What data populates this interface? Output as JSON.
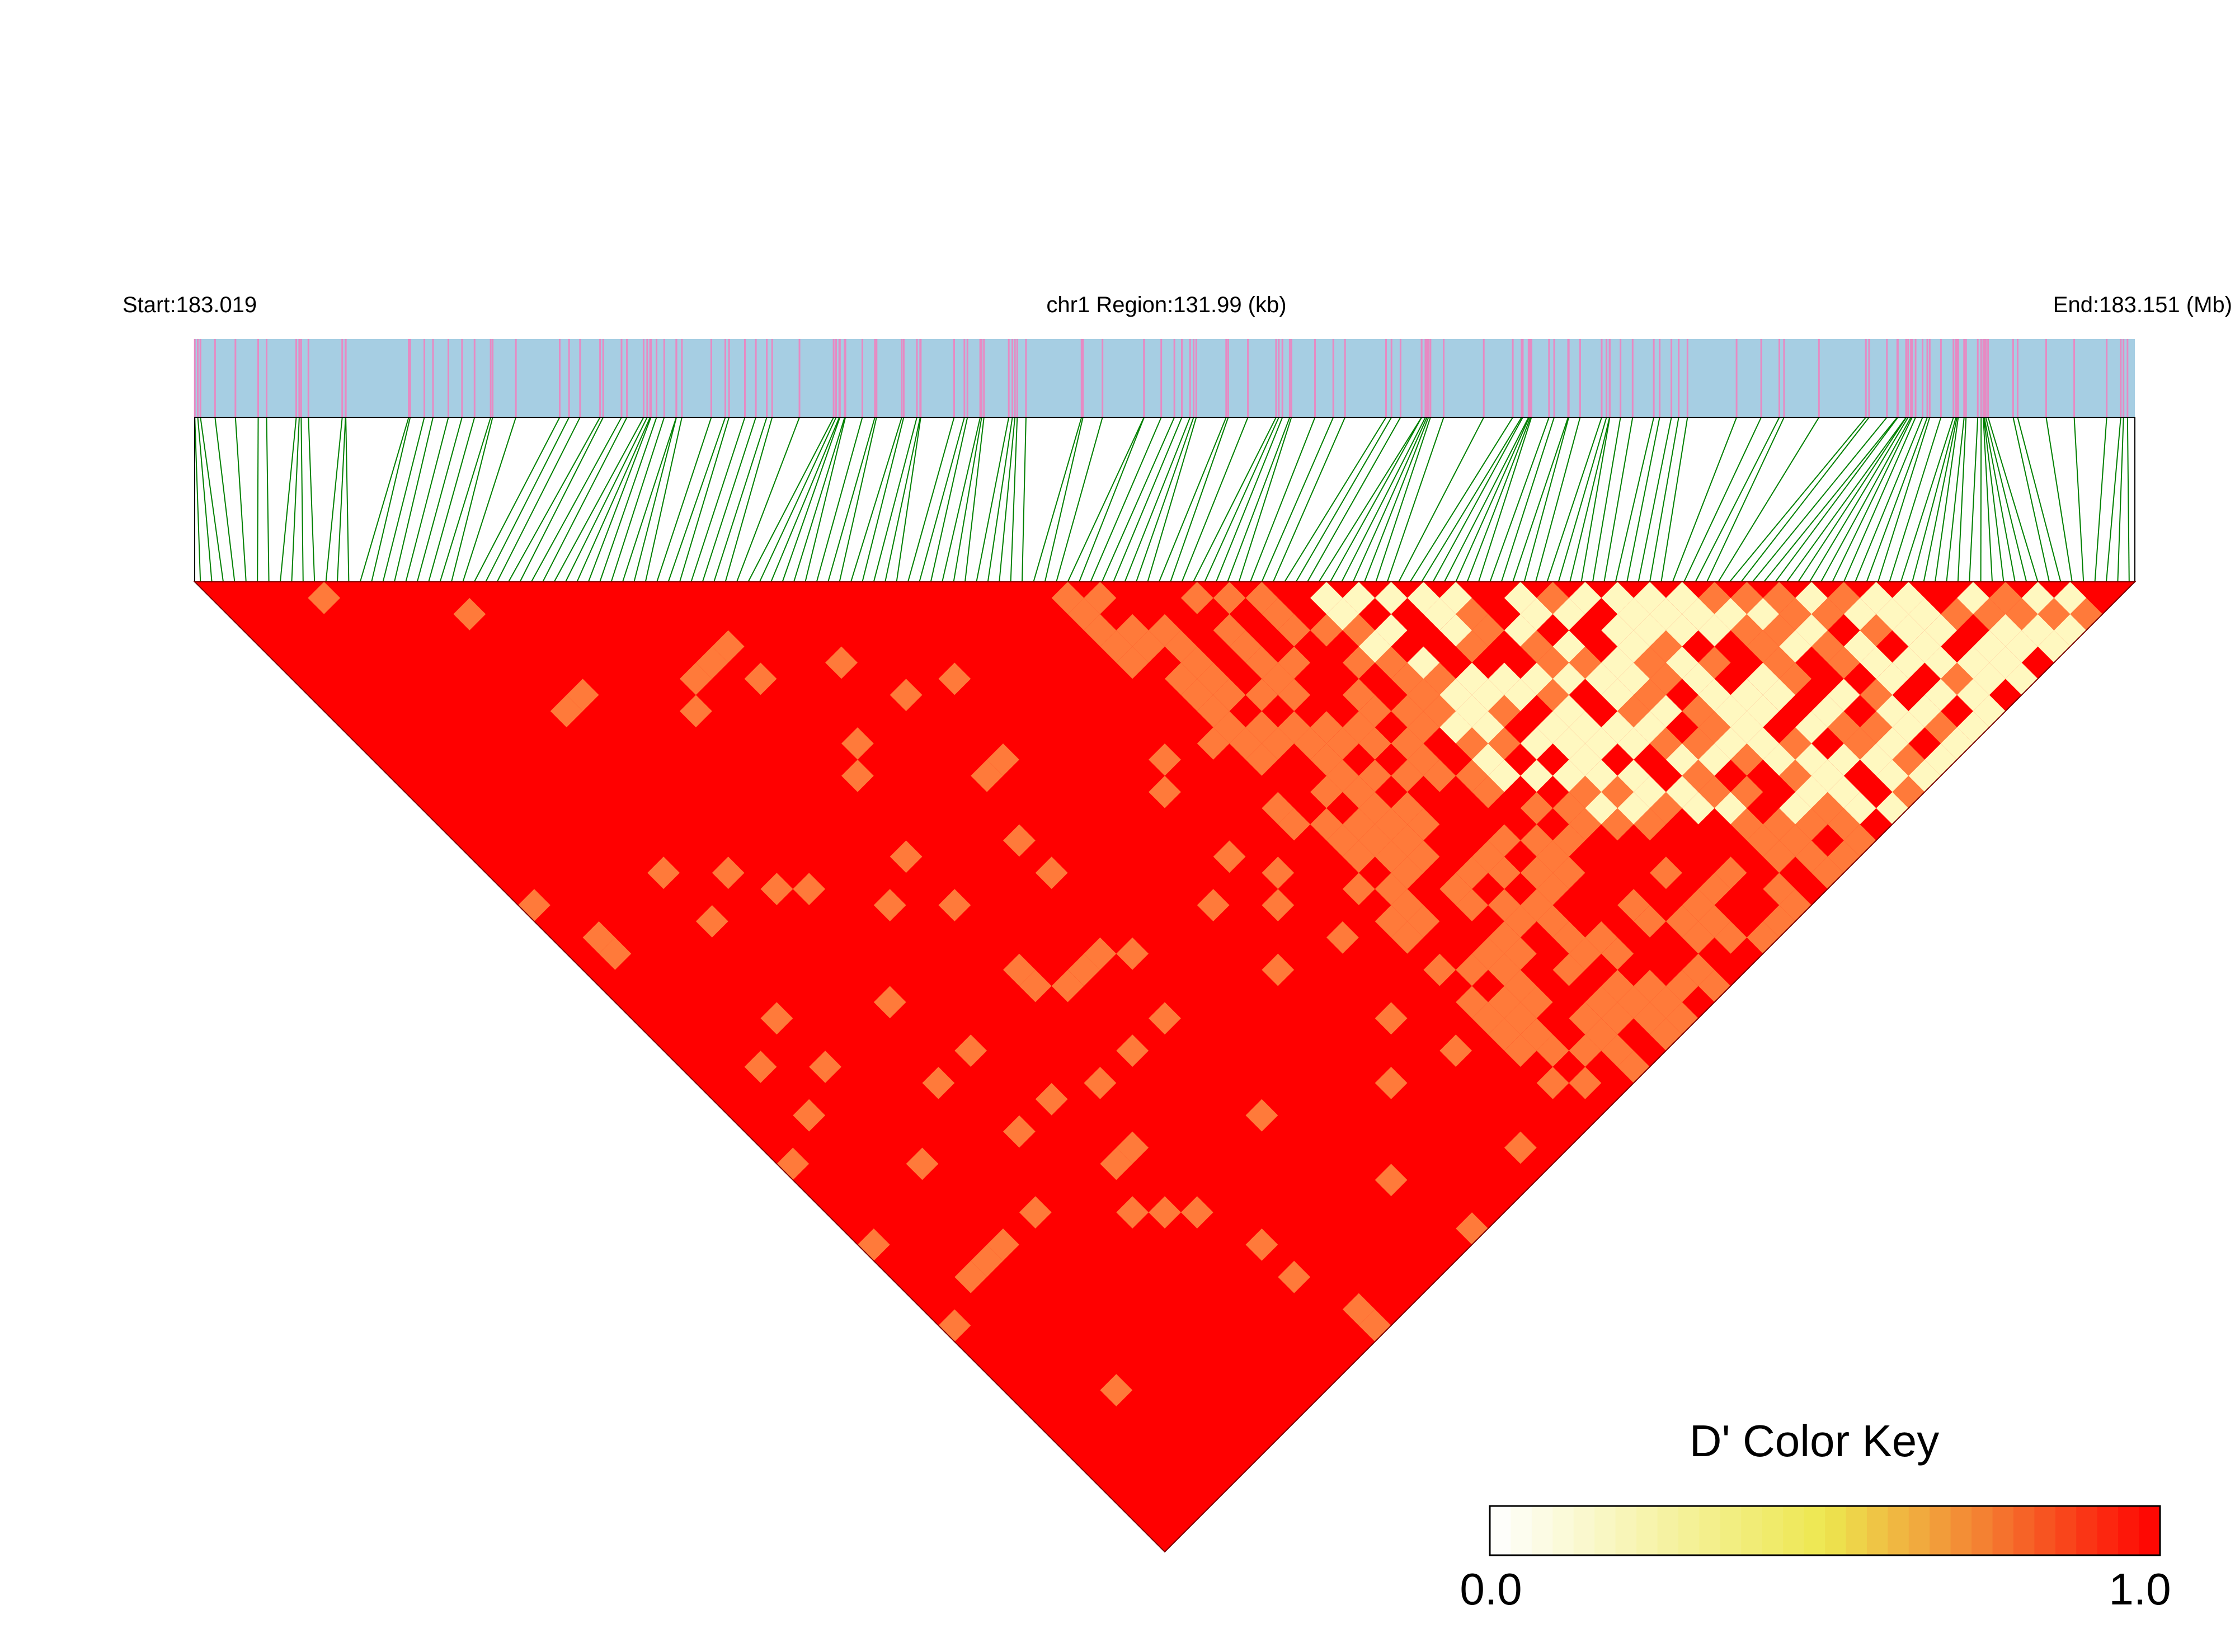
{
  "chart_data": {
    "type": "heatmap",
    "title": "",
    "header": {
      "start_label": "Start:183.019",
      "region_label": "chr1 Region:131.99 (kb)",
      "end_label": "End:183.151 (Mb)"
    },
    "region": {
      "chromosome": "chr1",
      "start_mb": 183.019,
      "end_mb": 183.151,
      "length_kb": 131.99
    },
    "track_colors": {
      "snp_track_background": "#a6cee3",
      "snp_marker": "#e78ac3",
      "connector_lines": "#008000",
      "matrix_high": "#ff0000",
      "matrix_mid": "#ff7a3a",
      "matrix_low": "#fff8c0"
    },
    "color_key": {
      "title": "D' Color Key",
      "min_label": "0.0",
      "max_label": "1.0",
      "min": 0.0,
      "max": 1.0,
      "steps": 32,
      "stops": [
        {
          "value": 0.0,
          "color": "#ffffff"
        },
        {
          "value": 0.5,
          "color": "#ede74f"
        },
        {
          "value": 0.75,
          "color": "#f47a30"
        },
        {
          "value": 1.0,
          "color": "#ff0000"
        }
      ]
    }
  }
}
